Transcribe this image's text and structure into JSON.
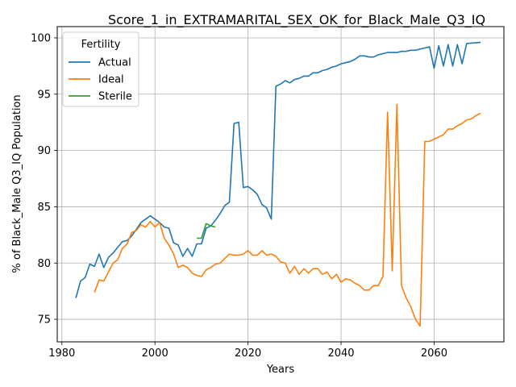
{
  "chart_data": {
    "type": "line",
    "title": "Score_1_in_EXTRAMARITAL_SEX_OK_for_Black_Male_Q3_IQ",
    "xlabel": "Years",
    "ylabel": "% of Black_Male Q3_IQ Population",
    "xlim": [
      1979,
      2075
    ],
    "ylim": [
      73,
      101
    ],
    "xticks": [
      1980,
      2000,
      2020,
      2040,
      2060
    ],
    "yticks": [
      75,
      80,
      85,
      90,
      95,
      100
    ],
    "grid": true,
    "legend": {
      "title": "Fertility",
      "placement": "upper-left"
    },
    "series": [
      {
        "name": "Actual",
        "color": "#1f77b4",
        "points": [
          [
            1983,
            76.9
          ],
          [
            1984,
            78.4
          ],
          [
            1985,
            78.7
          ],
          [
            1986,
            79.9
          ],
          [
            1987,
            79.7
          ],
          [
            1988,
            80.8
          ],
          [
            1989,
            79.6
          ],
          [
            1990,
            80.5
          ],
          [
            1991,
            80.9
          ],
          [
            1992,
            81.4
          ],
          [
            1993,
            81.9
          ],
          [
            1994,
            82.0
          ],
          [
            1995,
            82.4
          ],
          [
            1996,
            83.0
          ],
          [
            1997,
            83.6
          ],
          [
            1998,
            83.9
          ],
          [
            1999,
            84.2
          ],
          [
            2000,
            83.9
          ],
          [
            2001,
            83.6
          ],
          [
            2002,
            83.2
          ],
          [
            2003,
            83.1
          ],
          [
            2004,
            81.8
          ],
          [
            2005,
            81.6
          ],
          [
            2006,
            80.6
          ],
          [
            2007,
            81.3
          ],
          [
            2008,
            80.6
          ],
          [
            2009,
            81.7
          ],
          [
            2010,
            81.7
          ],
          [
            2011,
            83.1
          ],
          [
            2012,
            83.3
          ],
          [
            2013,
            83.8
          ],
          [
            2014,
            84.4
          ],
          [
            2015,
            85.1
          ],
          [
            2016,
            85.4
          ],
          [
            2017,
            92.4
          ],
          [
            2018,
            92.5
          ],
          [
            2019,
            86.7
          ],
          [
            2020,
            86.8
          ],
          [
            2021,
            86.5
          ],
          [
            2022,
            86.1
          ],
          [
            2023,
            85.2
          ],
          [
            2024,
            84.9
          ],
          [
            2025,
            83.9
          ],
          [
            2026,
            95.7
          ],
          [
            2027,
            95.9
          ],
          [
            2028,
            96.2
          ],
          [
            2029,
            96.0
          ],
          [
            2030,
            96.3
          ],
          [
            2031,
            96.4
          ],
          [
            2032,
            96.6
          ],
          [
            2033,
            96.6
          ],
          [
            2034,
            96.9
          ],
          [
            2035,
            96.9
          ],
          [
            2036,
            97.1
          ],
          [
            2037,
            97.2
          ],
          [
            2038,
            97.4
          ],
          [
            2039,
            97.5
          ],
          [
            2040,
            97.7
          ],
          [
            2041,
            97.8
          ],
          [
            2042,
            97.9
          ],
          [
            2043,
            98.1
          ],
          [
            2044,
            98.4
          ],
          [
            2045,
            98.4
          ],
          [
            2046,
            98.3
          ],
          [
            2047,
            98.3
          ],
          [
            2048,
            98.5
          ],
          [
            2049,
            98.6
          ],
          [
            2050,
            98.7
          ],
          [
            2051,
            98.7
          ],
          [
            2052,
            98.7
          ],
          [
            2053,
            98.8
          ],
          [
            2054,
            98.8
          ],
          [
            2055,
            98.9
          ],
          [
            2056,
            98.9
          ],
          [
            2057,
            99.0
          ],
          [
            2058,
            99.1
          ],
          [
            2059,
            99.2
          ],
          [
            2060,
            97.3
          ],
          [
            2061,
            99.3
          ],
          [
            2062,
            97.5
          ],
          [
            2063,
            99.4
          ],
          [
            2064,
            97.5
          ],
          [
            2065,
            99.4
          ],
          [
            2066,
            97.7
          ],
          [
            2067,
            99.5
          ],
          [
            2070,
            99.6
          ]
        ]
      },
      {
        "name": "Ideal",
        "color": "#ff7f0e",
        "points": [
          [
            1987,
            77.4
          ],
          [
            1988,
            78.5
          ],
          [
            1989,
            78.4
          ],
          [
            1990,
            79.2
          ],
          [
            1991,
            80.0
          ],
          [
            1992,
            80.3
          ],
          [
            1993,
            81.3
          ],
          [
            1994,
            81.7
          ],
          [
            1995,
            82.7
          ],
          [
            1996,
            82.9
          ],
          [
            1997,
            83.4
          ],
          [
            1998,
            83.2
          ],
          [
            1999,
            83.7
          ],
          [
            2000,
            83.2
          ],
          [
            2001,
            83.6
          ],
          [
            2002,
            82.2
          ],
          [
            2003,
            81.6
          ],
          [
            2004,
            80.8
          ],
          [
            2005,
            79.6
          ],
          [
            2006,
            79.8
          ],
          [
            2007,
            79.6
          ],
          [
            2008,
            79.1
          ],
          [
            2009,
            78.9
          ],
          [
            2010,
            78.8
          ],
          [
            2011,
            79.4
          ],
          [
            2012,
            79.6
          ],
          [
            2013,
            79.9
          ],
          [
            2014,
            80.0
          ],
          [
            2015,
            80.4
          ],
          [
            2016,
            80.8
          ],
          [
            2017,
            80.7
          ],
          [
            2018,
            80.7
          ],
          [
            2019,
            80.8
          ],
          [
            2020,
            81.1
          ],
          [
            2021,
            80.7
          ],
          [
            2022,
            80.7
          ],
          [
            2023,
            81.1
          ],
          [
            2024,
            80.7
          ],
          [
            2025,
            80.8
          ],
          [
            2026,
            80.6
          ],
          [
            2027,
            80.1
          ],
          [
            2028,
            80.0
          ],
          [
            2029,
            79.1
          ],
          [
            2030,
            79.7
          ],
          [
            2031,
            79.0
          ],
          [
            2032,
            79.5
          ],
          [
            2033,
            79.1
          ],
          [
            2034,
            79.5
          ],
          [
            2035,
            79.5
          ],
          [
            2036,
            79.0
          ],
          [
            2037,
            79.2
          ],
          [
            2038,
            78.6
          ],
          [
            2039,
            79.0
          ],
          [
            2040,
            78.3
          ],
          [
            2041,
            78.6
          ],
          [
            2042,
            78.5
          ],
          [
            2043,
            78.2
          ],
          [
            2044,
            78.0
          ],
          [
            2045,
            77.6
          ],
          [
            2046,
            77.6
          ],
          [
            2047,
            78.0
          ],
          [
            2048,
            78.0
          ],
          [
            2049,
            78.8
          ],
          [
            2050,
            93.4
          ],
          [
            2051,
            79.3
          ],
          [
            2052,
            94.1
          ],
          [
            2053,
            78.0
          ],
          [
            2054,
            76.9
          ],
          [
            2055,
            76.1
          ],
          [
            2056,
            75.0
          ],
          [
            2057,
            74.4
          ],
          [
            2058,
            90.8
          ],
          [
            2059,
            90.8
          ],
          [
            2060,
            91.0
          ],
          [
            2061,
            91.2
          ],
          [
            2062,
            91.4
          ],
          [
            2063,
            91.9
          ],
          [
            2064,
            91.9
          ],
          [
            2065,
            92.2
          ],
          [
            2066,
            92.4
          ],
          [
            2067,
            92.7
          ],
          [
            2068,
            92.8
          ],
          [
            2069,
            93.1
          ],
          [
            2070,
            93.3
          ]
        ]
      },
      {
        "name": "Sterile",
        "color": "#2ca02c",
        "points": [
          [
            2009,
            82.2
          ],
          [
            2010,
            82.2
          ],
          [
            2011,
            83.5
          ],
          [
            2012,
            83.3
          ],
          [
            2013,
            83.2
          ]
        ]
      }
    ]
  }
}
